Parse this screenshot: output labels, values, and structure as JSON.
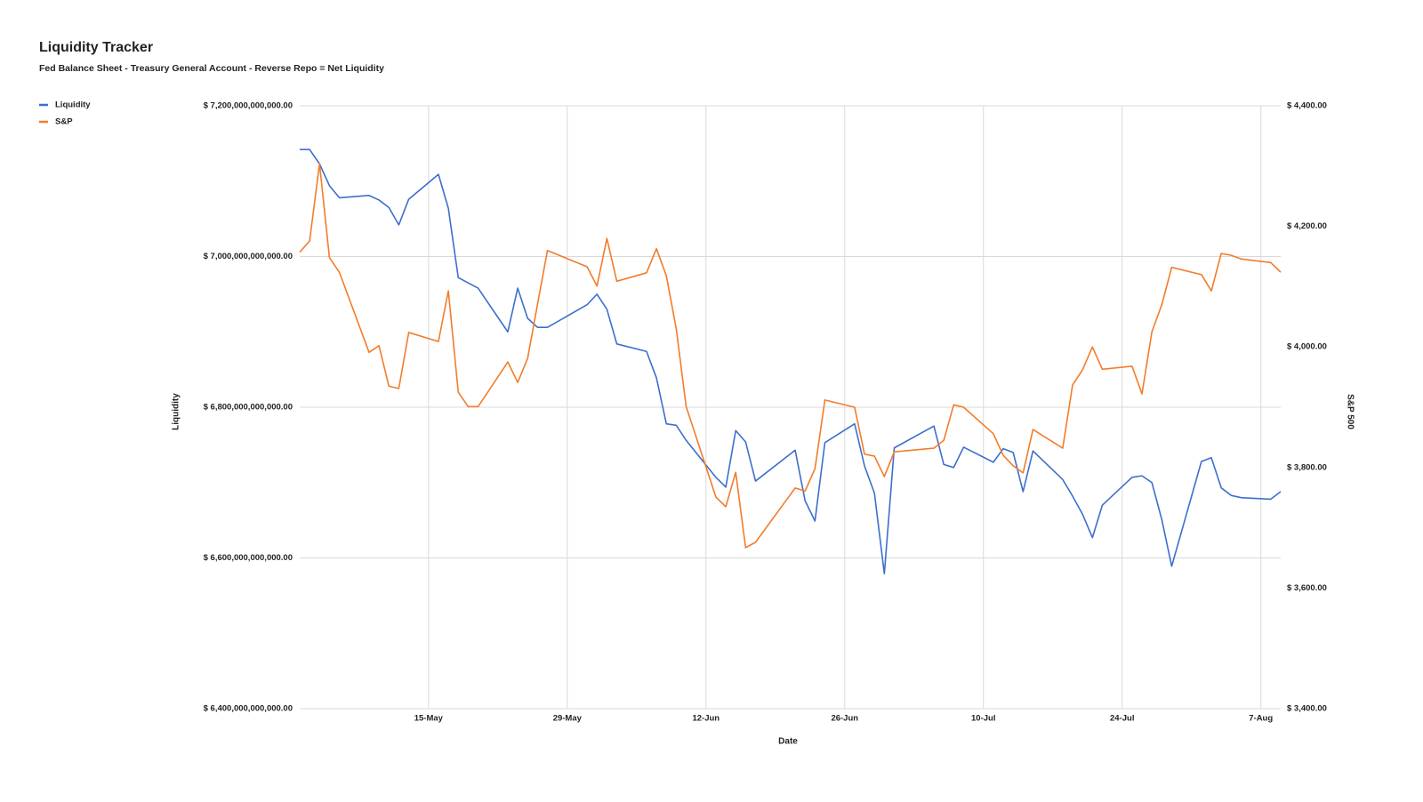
{
  "chart_data": {
    "type": "line",
    "title": "Liquidity Tracker",
    "subtitle": "Fed Balance Sheet - Treasury General Account - Reverse Repo = Net Liquidity",
    "x_label": "Date",
    "y_label": "Liquidity",
    "y2_label": "S&P 500",
    "legend": "top-left",
    "grid": true,
    "x": [
      "2-May",
      "3-May",
      "4-May",
      "5-May",
      "6-May",
      "9-May",
      "10-May",
      "11-May",
      "12-May",
      "13-May",
      "16-May",
      "17-May",
      "18-May",
      "19-May",
      "20-May",
      "23-May",
      "24-May",
      "25-May",
      "26-May",
      "27-May",
      "31-May",
      "1-Jun",
      "2-Jun",
      "3-Jun",
      "6-Jun",
      "7-Jun",
      "8-Jun",
      "9-Jun",
      "10-Jun",
      "13-Jun",
      "14-Jun",
      "15-Jun",
      "16-Jun",
      "17-Jun",
      "21-Jun",
      "22-Jun",
      "23-Jun",
      "24-Jun",
      "27-Jun",
      "28-Jun",
      "29-Jun",
      "30-Jun",
      "1-Jul",
      "5-Jul",
      "6-Jul",
      "7-Jul",
      "8-Jul",
      "11-Jul",
      "12-Jul",
      "13-Jul",
      "14-Jul",
      "15-Jul",
      "18-Jul",
      "19-Jul",
      "20-Jul",
      "21-Jul",
      "22-Jul",
      "25-Jul",
      "26-Jul",
      "27-Jul",
      "28-Jul",
      "29-Jul",
      "1-Aug",
      "2-Aug",
      "3-Aug",
      "4-Aug",
      "5-Aug",
      "8-Aug",
      "9-Aug"
    ],
    "xlim": [
      "2-May",
      "9-Aug"
    ],
    "xticks": [
      "15-May",
      "29-May",
      "12-Jun",
      "26-Jun",
      "10-Jul",
      "24-Jul",
      "7-Aug"
    ],
    "ylim": [
      6400000000000,
      7200000000000
    ],
    "yticks": [
      {
        "value": 6400000000000,
        "label": "$ 6,400,000,000,000.00"
      },
      {
        "value": 6600000000000,
        "label": "$ 6,600,000,000,000.00"
      },
      {
        "value": 6800000000000,
        "label": "$ 6,800,000,000,000.00"
      },
      {
        "value": 7000000000000,
        "label": "$ 7,000,000,000,000.00"
      },
      {
        "value": 7200000000000,
        "label": "$ 7,200,000,000,000.00"
      }
    ],
    "y2lim": [
      3400,
      4400
    ],
    "y2ticks": [
      {
        "value": 3400,
        "label": "$ 3,400.00"
      },
      {
        "value": 3600,
        "label": "$ 3,600.00"
      },
      {
        "value": 3800,
        "label": "$ 3,800.00"
      },
      {
        "value": 4000,
        "label": "$ 4,000.00"
      },
      {
        "value": 4200,
        "label": "$ 4,200.00"
      },
      {
        "value": 4400,
        "label": "$ 4,400.00"
      }
    ],
    "series": [
      {
        "name": "Liquidity",
        "color": "#3c6fcd",
        "axis": "y",
        "values": [
          7142000000000,
          7142000000000,
          7123000000000,
          7094000000000,
          7078000000000,
          7081000000000,
          7075000000000,
          7065000000000,
          7042000000000,
          7076000000000,
          7109000000000,
          7064000000000,
          6972000000000,
          6965000000000,
          6958000000000,
          6900000000000,
          6958000000000,
          6918000000000,
          6906000000000,
          6906000000000,
          6936000000000,
          6950000000000,
          6930000000000,
          6884000000000,
          6874000000000,
          6839000000000,
          6778000000000,
          6776000000000,
          6756000000000,
          6707000000000,
          6694000000000,
          6769000000000,
          6754000000000,
          6702000000000,
          6743000000000,
          6676000000000,
          6649000000000,
          6753000000000,
          6778000000000,
          6722000000000,
          6686000000000,
          6579000000000,
          6746000000000,
          6775000000000,
          6724000000000,
          6720000000000,
          6747000000000,
          6727000000000,
          6745000000000,
          6740000000000,
          6688000000000,
          6742000000000,
          6704000000000,
          6682000000000,
          6658000000000,
          6627000000000,
          6670000000000,
          6707000000000,
          6709000000000,
          6700000000000,
          6651000000000,
          6589000000000,
          6728000000000,
          6733000000000,
          6693000000000,
          6683000000000,
          6680000000000,
          6678000000000,
          6688000000000
        ]
      },
      {
        "name": "S&P",
        "color": "#f27c2b",
        "axis": "y2",
        "values": [
          4157,
          4176,
          4304,
          4148,
          4124,
          3991,
          4002,
          3935,
          3931,
          4024,
          4009,
          4093,
          3925,
          3901,
          3901,
          3975,
          3941,
          3981,
          4071,
          4160,
          4133,
          4101,
          4180,
          4109,
          4123,
          4163,
          4118,
          4030,
          3901,
          3751,
          3735,
          3792,
          3667,
          3676,
          3766,
          3761,
          3798,
          3912,
          3900,
          3822,
          3819,
          3785,
          3826,
          3832,
          3845,
          3904,
          3900,
          3856,
          3820,
          3803,
          3791,
          3863,
          3832,
          3937,
          3962,
          4000,
          3963,
          3968,
          3922,
          4025,
          4070,
          4132,
          4120,
          4093,
          4155,
          4152,
          4146,
          4140,
          4124
        ]
      }
    ]
  }
}
